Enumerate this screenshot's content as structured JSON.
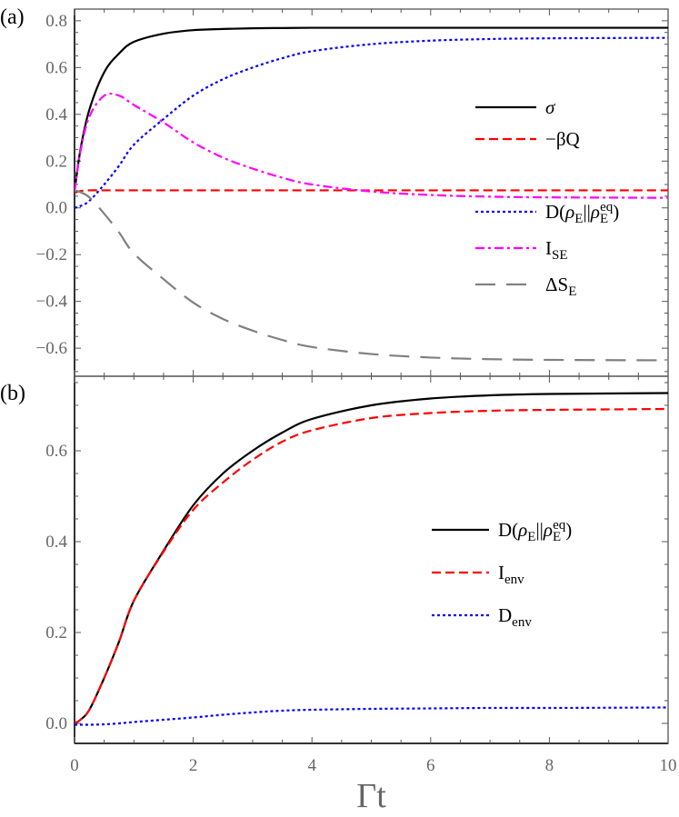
{
  "chart_data": [
    {
      "panel_label": "(a)",
      "type": "line",
      "xlim": [
        0,
        10
      ],
      "ylim": [
        -0.72,
        0.85
      ],
      "x_ticks": [
        0,
        2,
        4,
        6,
        8,
        10
      ],
      "y_ticks": [
        -0.6,
        -0.4,
        -0.2,
        0.0,
        0.2,
        0.4,
        0.6,
        0.8
      ],
      "y_tick_labels": [
        "−0.6",
        "−0.4",
        "−0.2",
        "0.0",
        "0.2",
        "0.4",
        "0.6",
        "0.8"
      ],
      "grid": false,
      "legend_position": "right",
      "x": [
        0,
        0.1,
        0.25,
        0.5,
        0.75,
        1,
        1.5,
        2,
        2.5,
        3,
        3.5,
        4,
        5,
        6,
        7,
        8,
        10
      ],
      "series": [
        {
          "name_parts": [
            [
              "σ",
              "i"
            ]
          ],
          "color": "#000000",
          "dash": "solid",
          "values": [
            0.07,
            0.25,
            0.42,
            0.58,
            0.66,
            0.71,
            0.745,
            0.76,
            0.765,
            0.768,
            0.769,
            0.77,
            0.77,
            0.77,
            0.77,
            0.77,
            0.77
          ]
        },
        {
          "name_parts": [
            [
              "−β",
              ""
            ],
            [
              "Q",
              ""
            ]
          ],
          "color": "#ff0000",
          "dash": "dashed",
          "values": [
            0.065,
            0.072,
            0.075,
            0.075,
            0.075,
            0.075,
            0.075,
            0.075,
            0.075,
            0.075,
            0.075,
            0.075,
            0.075,
            0.075,
            0.075,
            0.075,
            0.075
          ]
        },
        {
          "name_parts": [
            [
              "D(",
              ""
            ],
            [
              "ρ",
              "i"
            ],
            [
              "E",
              "sub"
            ],
            [
              "||",
              ""
            ],
            [
              "ρ",
              "i"
            ],
            [
              "E",
              "sub"
            ],
            [
              "eq",
              "sup"
            ],
            [
              ")",
              ""
            ]
          ],
          "color": "#0000ff",
          "dash": "dotted",
          "values": [
            0,
            0.008,
            0.03,
            0.1,
            0.18,
            0.27,
            0.38,
            0.48,
            0.55,
            0.6,
            0.64,
            0.67,
            0.7,
            0.715,
            0.722,
            0.725,
            0.727
          ]
        },
        {
          "name_parts": [
            [
              "I",
              ""
            ],
            [
              "SE",
              "sub"
            ]
          ],
          "color": "#ff00ff",
          "dash": "dashdot",
          "values": [
            0.07,
            0.242,
            0.39,
            0.48,
            0.48,
            0.44,
            0.365,
            0.28,
            0.215,
            0.168,
            0.129,
            0.1,
            0.07,
            0.055,
            0.048,
            0.045,
            0.043
          ]
        },
        {
          "name_parts": [
            [
              "ΔS",
              ""
            ],
            [
              "E",
              "sub"
            ]
          ],
          "color": "#808080",
          "dash": "longdash",
          "values": [
            0.075,
            0.067,
            0.045,
            -0.025,
            -0.105,
            -0.195,
            -0.305,
            -0.405,
            -0.475,
            -0.525,
            -0.565,
            -0.595,
            -0.625,
            -0.64,
            -0.647,
            -0.65,
            -0.652
          ]
        }
      ]
    },
    {
      "panel_label": "(b)",
      "type": "line",
      "xlabel": "Γt",
      "xlim": [
        0,
        10
      ],
      "ylim": [
        -0.044,
        0.764
      ],
      "x_ticks": [
        0,
        2,
        4,
        6,
        8,
        10
      ],
      "x_tick_labels": [
        "0",
        "2",
        "4",
        "6",
        "8",
        "10"
      ],
      "y_ticks": [
        0.0,
        0.2,
        0.4,
        0.6
      ],
      "y_tick_labels": [
        "0.0",
        "0.2",
        "0.4",
        "0.6"
      ],
      "grid": false,
      "legend_position": "right",
      "x": [
        0,
        0.1,
        0.25,
        0.5,
        0.75,
        1,
        1.5,
        2,
        2.5,
        3,
        3.5,
        4,
        5,
        6,
        7,
        8,
        10
      ],
      "series": [
        {
          "name_parts": [
            [
              "D(",
              ""
            ],
            [
              "ρ",
              "i"
            ],
            [
              "E",
              "sub"
            ],
            [
              "||",
              ""
            ],
            [
              "ρ",
              "i"
            ],
            [
              "E",
              "sub"
            ],
            [
              "eq",
              "sup"
            ],
            [
              ")",
              ""
            ]
          ],
          "color": "#000000",
          "dash": "solid",
          "values": [
            0,
            0.008,
            0.03,
            0.1,
            0.18,
            0.27,
            0.38,
            0.48,
            0.55,
            0.6,
            0.64,
            0.67,
            0.7,
            0.715,
            0.722,
            0.725,
            0.727
          ]
        },
        {
          "name_parts": [
            [
              "I",
              ""
            ],
            [
              "env",
              "sub"
            ]
          ],
          "color": "#ff0000",
          "dash": "dashed",
          "values": [
            0,
            0.008,
            0.03,
            0.1,
            0.18,
            0.27,
            0.378,
            0.47,
            0.53,
            0.58,
            0.62,
            0.645,
            0.672,
            0.683,
            0.688,
            0.69,
            0.692
          ]
        },
        {
          "name_parts": [
            [
              "D",
              ""
            ],
            [
              "env",
              "sub"
            ]
          ],
          "color": "#0000ff",
          "dash": "dotted",
          "values": [
            -0.003,
            -0.003,
            -0.003,
            -0.002,
            0,
            0.003,
            0.008,
            0.013,
            0.019,
            0.024,
            0.028,
            0.03,
            0.032,
            0.033,
            0.034,
            0.034,
            0.035
          ]
        }
      ]
    }
  ]
}
